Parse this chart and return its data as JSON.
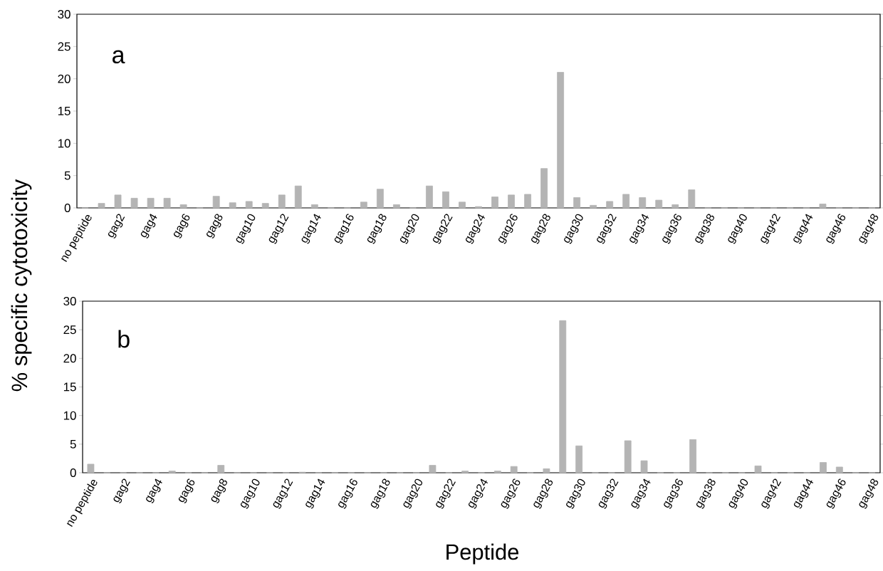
{
  "chart_data": [
    {
      "type": "bar",
      "title": "a",
      "ylabel": "% specific cytotoxicity",
      "color": "#b4b4b4",
      "categories": [
        "no peptide",
        null,
        "gag2",
        null,
        "gag4",
        null,
        "gag6",
        null,
        "gag8",
        null,
        "gag10",
        null,
        "gag12",
        null,
        "gag14",
        null,
        "gag16",
        null,
        "gag18",
        null,
        "gag20",
        null,
        "gag22",
        null,
        "gag24",
        null,
        "gag26",
        null,
        "gag28",
        null,
        "gag30",
        null,
        "gag32",
        null,
        "gag34",
        null,
        "gag36",
        null,
        "gag38",
        null,
        "gag40",
        null,
        "gag42",
        null,
        "gag44",
        null,
        "gag46",
        null,
        "gag48"
      ],
      "values": [
        0,
        0.7,
        2.0,
        1.5,
        1.5,
        1.5,
        0.5,
        0,
        1.8,
        0.8,
        1.0,
        0.7,
        2.0,
        3.4,
        0.5,
        0,
        0,
        0.9,
        2.9,
        0.5,
        0,
        3.4,
        2.5,
        0.9,
        0.2,
        1.7,
        2.0,
        2.1,
        6.1,
        21.0,
        1.6,
        0.4,
        1.0,
        2.1,
        1.6,
        1.2,
        0.5,
        2.8,
        0,
        0,
        0,
        0,
        0,
        0,
        0,
        0.6,
        0,
        0,
        0
      ],
      "ylim": [
        0,
        30
      ],
      "yticks": [
        0,
        5,
        10,
        15,
        20,
        25,
        30
      ]
    },
    {
      "type": "bar",
      "title": "b",
      "xlabel": "Peptide",
      "color": "#b4b4b4",
      "categories": [
        "no peptide",
        null,
        "gag2",
        null,
        "gag4",
        null,
        "gag6",
        null,
        "gag8",
        null,
        "gag10",
        null,
        "gag12",
        null,
        "gag14",
        null,
        "gag16",
        null,
        "gag18",
        null,
        "gag20",
        null,
        "gag22",
        null,
        "gag24",
        null,
        "gag26",
        null,
        "gag28",
        null,
        "gag30",
        null,
        "gag32",
        null,
        "gag34",
        null,
        "gag36",
        null,
        "gag38",
        null,
        "gag40",
        null,
        "gag42",
        null,
        "gag44",
        null,
        "gag46",
        null,
        "gag48"
      ],
      "values": [
        1.5,
        0,
        0,
        0,
        0,
        0.3,
        0,
        0,
        1.3,
        0,
        0,
        0,
        0,
        0.1,
        0,
        0,
        0,
        0,
        0,
        0,
        0,
        1.3,
        0,
        0.3,
        0,
        0.3,
        1.1,
        0,
        0.7,
        26.6,
        4.7,
        0,
        0,
        5.6,
        2.1,
        0,
        0,
        5.8,
        0,
        0,
        0,
        1.2,
        0,
        0,
        0,
        1.8,
        1.0,
        0,
        0
      ],
      "ylim": [
        0,
        30
      ],
      "yticks": [
        0,
        5,
        10,
        15,
        20,
        25,
        30
      ]
    }
  ]
}
